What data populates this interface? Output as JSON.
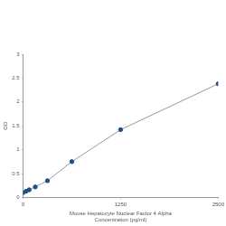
{
  "chart_data": {
    "type": "line",
    "x_label": [
      "Mouse Hepatocyte Nuclear Factor 4 Alpha",
      "Concentration (pg/ml)"
    ],
    "y_label": "OD",
    "x": [
      0,
      39,
      78,
      156,
      312,
      625,
      1250,
      2500
    ],
    "values": [
      0.1,
      0.13,
      0.16,
      0.22,
      0.35,
      0.75,
      1.42,
      2.38
    ],
    "color": "#1f4e8c",
    "marker": "circle",
    "xlim": [
      0,
      2500
    ],
    "xticks": [
      0,
      1250,
      2500
    ],
    "ylim": [
      0,
      3
    ],
    "yticks": [
      0,
      0.5,
      1,
      1.5,
      2,
      2.5,
      3
    ],
    "grid": false
  }
}
